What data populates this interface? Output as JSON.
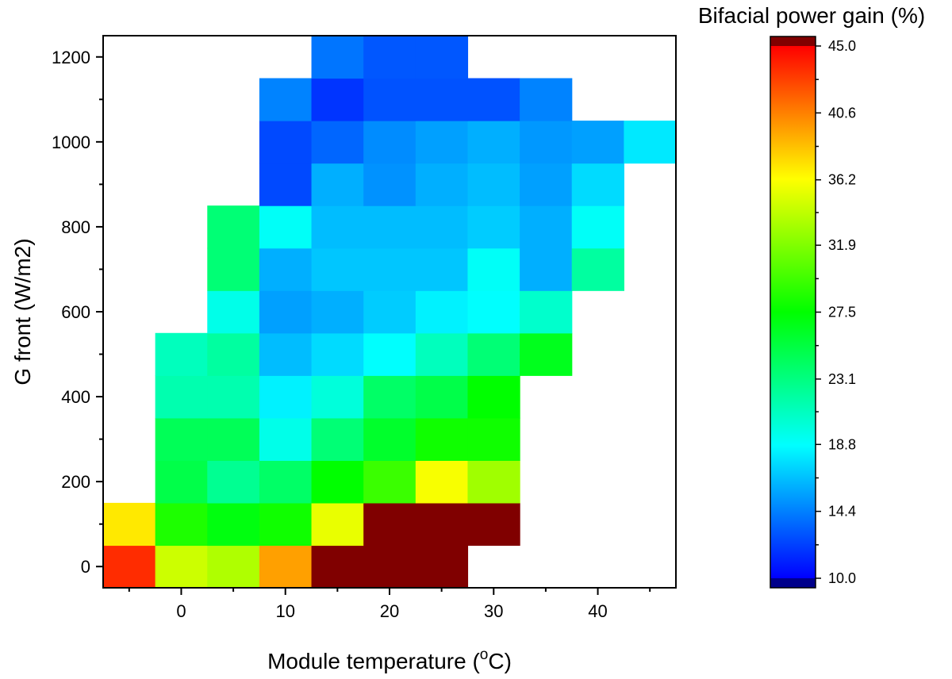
{
  "chart_data": {
    "type": "heatmap",
    "title": "",
    "xlabel": "Module temperature (",
    "xlabel_sup": "o",
    "xlabel_suffix": "C)",
    "ylabel": "G front (W/m2)",
    "xlim": [
      -7.5,
      47.5
    ],
    "ylim": [
      -50,
      1250
    ],
    "xticks": [
      0,
      10,
      20,
      30,
      40
    ],
    "xtick_labels": [
      "0",
      "10",
      "20",
      "30",
      "40"
    ],
    "yticks": [
      0,
      200,
      400,
      600,
      800,
      1000,
      1200
    ],
    "ytick_labels": [
      "0",
      "200",
      "400",
      "600",
      "800",
      "1000",
      "1200"
    ],
    "x_bin_centers": [
      -5,
      0,
      5,
      10,
      15,
      20,
      25,
      30,
      35,
      40,
      45
    ],
    "y_bin_centers": [
      0,
      100,
      200,
      300,
      400,
      500,
      600,
      700,
      800,
      900,
      1000,
      1100,
      1200
    ],
    "x_bin_width": 5,
    "y_bin_height": 100,
    "values": [
      [
        43.5,
        34.5,
        33.5,
        39.5,
        46,
        46,
        46,
        null,
        null,
        null,
        null
      ],
      [
        37,
        28.5,
        27,
        28,
        35.5,
        46,
        46,
        46,
        null,
        null,
        null
      ],
      [
        null,
        25,
        22.5,
        24,
        27.5,
        29.5,
        36,
        33,
        null,
        null,
        null
      ],
      [
        null,
        24.5,
        24.5,
        19.5,
        23.5,
        26,
        28,
        28,
        null,
        null,
        null
      ],
      [
        null,
        21.5,
        21.5,
        18.3,
        20,
        24,
        25,
        27.5,
        null,
        null,
        null
      ],
      [
        null,
        21,
        22,
        16.5,
        17.5,
        18.8,
        21,
        23.5,
        26.5,
        null,
        null
      ],
      [
        null,
        null,
        19.5,
        15.5,
        16,
        17,
        18.3,
        18.8,
        20.5,
        null,
        null
      ],
      [
        null,
        null,
        23.5,
        16,
        16.8,
        16.8,
        16.8,
        19,
        16,
        22,
        null
      ],
      [
        null,
        null,
        23.5,
        19,
        16.5,
        16.5,
        16.5,
        17,
        16,
        19,
        null
      ],
      [
        null,
        null,
        null,
        12.5,
        16,
        15,
        16,
        16.5,
        15.5,
        17.5,
        null
      ],
      [
        null,
        null,
        null,
        12.5,
        13.5,
        14.8,
        15.5,
        16,
        15.2,
        15.5,
        18
      ],
      [
        null,
        null,
        null,
        14.5,
        11.8,
        12.8,
        12.8,
        12.8,
        14.5,
        null,
        null
      ],
      [
        null,
        null,
        null,
        null,
        14,
        13,
        13,
        null,
        null,
        null,
        null
      ]
    ],
    "colorbar": {
      "title": "Bifacial power gain (%)",
      "min": 10.0,
      "max": 45.0,
      "ticks": [
        10.0,
        14.4,
        18.8,
        23.1,
        27.5,
        31.9,
        36.2,
        40.6,
        45.0
      ],
      "tick_labels": [
        "10.0",
        "14.4",
        "18.8",
        "23.1",
        "27.5",
        "31.9",
        "36.2",
        "40.6",
        "45.0"
      ],
      "over_color": "#800000",
      "under_color": "#00008b",
      "colormap": [
        "#0000ff",
        "#00ffff",
        "#00ff00",
        "#ffff00",
        "#ff0000"
      ]
    },
    "grid": false,
    "legend": "colorbar-right"
  }
}
